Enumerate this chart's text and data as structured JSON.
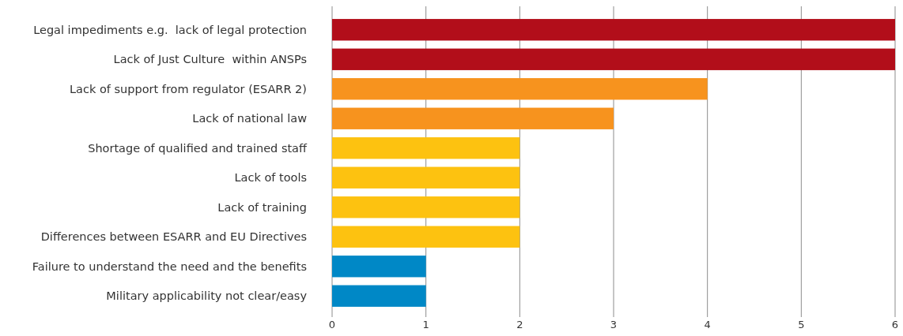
{
  "chart_data": {
    "type": "bar",
    "orientation": "horizontal",
    "categories": [
      "Legal impediments e.g.  lack of legal protection",
      "Lack of Just Culture  within ANSPs",
      "Lack of support from regulator (ESARR 2)",
      "Lack of national law",
      "Shortage of qualified and trained staff",
      "Lack of tools",
      "Lack of training",
      "Differences between ESARR and EU Directives",
      "Failure to understand the need and the benefits",
      "Military applicability not clear/easy"
    ],
    "values": [
      6,
      6,
      4,
      3,
      2,
      2,
      2,
      2,
      1,
      1
    ],
    "colors": [
      "#b20e1a",
      "#b20e1a",
      "#f7931e",
      "#f7931e",
      "#fdc210",
      "#fdc210",
      "#fdc210",
      "#fdc210",
      "#0088c6",
      "#0088c6"
    ],
    "xlim": [
      0,
      6
    ],
    "xticks": [
      0,
      1,
      2,
      3,
      4,
      5,
      6
    ],
    "grid": "x"
  }
}
